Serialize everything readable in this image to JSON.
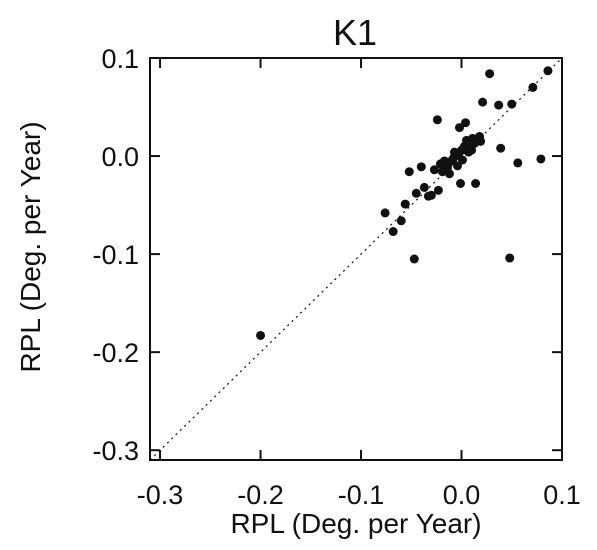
{
  "chart_data": {
    "type": "scatter",
    "title": "K1",
    "xlabel": "RPL (Deg. per Year)",
    "ylabel": "RPL (Deg. per Year)",
    "xlim": [
      -0.31,
      0.1
    ],
    "ylim": [
      -0.31,
      0.1
    ],
    "xticks": [
      "-0.3",
      "-0.2",
      "-0.1",
      "0.0",
      "0.1"
    ],
    "yticks": [
      "0.1",
      "0.0",
      "-0.1",
      "-0.2",
      "-0.3"
    ],
    "reference_line": "y = x (dotted)",
    "grid": false,
    "legend": "none",
    "colors": {
      "points": "#111111",
      "axes": "#111111",
      "background": "#ffffff"
    },
    "points": [
      {
        "x": -0.2,
        "y": -0.183
      },
      {
        "x": -0.076,
        "y": -0.058
      },
      {
        "x": -0.068,
        "y": -0.077
      },
      {
        "x": -0.06,
        "y": -0.066
      },
      {
        "x": -0.056,
        "y": -0.049
      },
      {
        "x": -0.052,
        "y": -0.016
      },
      {
        "x": -0.047,
        "y": -0.105
      },
      {
        "x": -0.045,
        "y": -0.038
      },
      {
        "x": -0.04,
        "y": -0.011
      },
      {
        "x": -0.037,
        "y": -0.032
      },
      {
        "x": -0.033,
        "y": -0.041
      },
      {
        "x": -0.03,
        "y": -0.04
      },
      {
        "x": -0.027,
        "y": -0.014
      },
      {
        "x": -0.024,
        "y": 0.037
      },
      {
        "x": -0.023,
        "y": -0.035
      },
      {
        "x": -0.021,
        "y": -0.008
      },
      {
        "x": -0.019,
        "y": -0.016
      },
      {
        "x": -0.017,
        "y": -0.005
      },
      {
        "x": -0.015,
        "y": -0.013
      },
      {
        "x": -0.014,
        "y": -0.012
      },
      {
        "x": -0.012,
        "y": -0.018
      },
      {
        "x": -0.01,
        "y": -0.005
      },
      {
        "x": -0.008,
        "y": -0.002
      },
      {
        "x": -0.007,
        "y": 0.004
      },
      {
        "x": -0.006,
        "y": 0.0
      },
      {
        "x": -0.004,
        "y": -0.01
      },
      {
        "x": -0.003,
        "y": 0.002
      },
      {
        "x": -0.002,
        "y": 0.029
      },
      {
        "x": -0.001,
        "y": -0.028
      },
      {
        "x": 0.0,
        "y": 0.006
      },
      {
        "x": 0.001,
        "y": -0.004
      },
      {
        "x": 0.003,
        "y": 0.01
      },
      {
        "x": 0.004,
        "y": 0.034
      },
      {
        "x": 0.005,
        "y": 0.016
      },
      {
        "x": 0.007,
        "y": 0.004
      },
      {
        "x": 0.008,
        "y": 0.012
      },
      {
        "x": 0.01,
        "y": 0.006
      },
      {
        "x": 0.011,
        "y": 0.018
      },
      {
        "x": 0.013,
        "y": 0.013
      },
      {
        "x": 0.014,
        "y": -0.028
      },
      {
        "x": 0.016,
        "y": 0.017
      },
      {
        "x": 0.018,
        "y": 0.02
      },
      {
        "x": 0.019,
        "y": 0.015
      },
      {
        "x": 0.021,
        "y": 0.055
      },
      {
        "x": 0.028,
        "y": 0.084
      },
      {
        "x": 0.037,
        "y": 0.052
      },
      {
        "x": 0.039,
        "y": 0.008
      },
      {
        "x": 0.048,
        "y": -0.104
      },
      {
        "x": 0.05,
        "y": 0.053
      },
      {
        "x": 0.056,
        "y": -0.007
      },
      {
        "x": 0.071,
        "y": 0.07
      },
      {
        "x": 0.079,
        "y": -0.003
      },
      {
        "x": 0.086,
        "y": 0.087
      }
    ]
  }
}
